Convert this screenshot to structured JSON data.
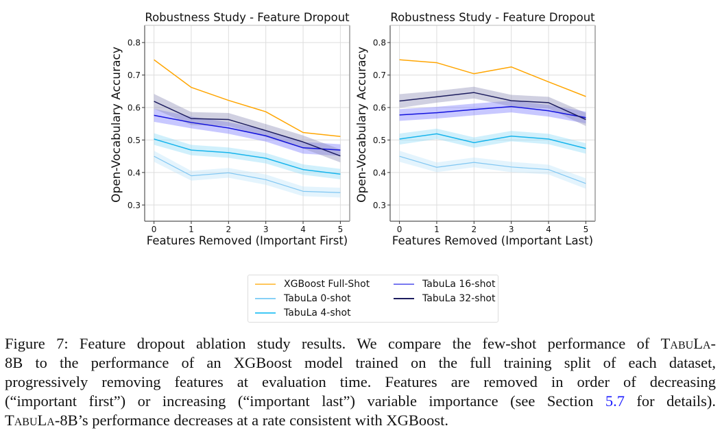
{
  "chart_data": [
    {
      "type": "line",
      "title": "Robustness Study - Feature Dropout",
      "xlabel": "Features Removed (Important First)",
      "ylabel": "Open-Vocabulary Accuracy",
      "x": [
        0,
        1,
        2,
        3,
        4,
        5
      ],
      "xticks": [
        "0",
        "1",
        "2",
        "3",
        "4",
        "5"
      ],
      "yticks": [
        "0.3",
        "0.4",
        "0.5",
        "0.6",
        "0.7",
        "0.8"
      ],
      "ytick_values": [
        0.3,
        0.4,
        0.5,
        0.6,
        0.7,
        0.8
      ],
      "xlim": [
        -0.25,
        5.25
      ],
      "ylim": [
        0.25,
        0.853
      ],
      "grid": true,
      "series": [
        {
          "name": "XGBoost Full-Shot",
          "color": "#ffa500",
          "band_color": "#ffa500",
          "values": [
            0.747,
            0.662,
            0.622,
            0.587,
            0.523,
            0.511
          ],
          "ci": [
            0.002,
            0.002,
            0.002,
            0.002,
            0.002,
            0.002
          ]
        },
        {
          "name": "TabuLa 0-shot",
          "color": "#7fc6f2",
          "band_color": "#bfe4fb",
          "values": [
            0.45,
            0.39,
            0.399,
            0.378,
            0.342,
            0.338
          ],
          "ci": [
            0.017,
            0.015,
            0.015,
            0.016,
            0.015,
            0.015
          ]
        },
        {
          "name": "TabuLa 4-shot",
          "color": "#16b4ec",
          "band_color": "#8fdcf8",
          "values": [
            0.503,
            0.469,
            0.461,
            0.444,
            0.409,
            0.395
          ],
          "ci": [
            0.018,
            0.016,
            0.016,
            0.016,
            0.016,
            0.016
          ]
        },
        {
          "name": "TabuLa 16-shot",
          "color": "#1212dd",
          "band_color": "#7b7bff",
          "values": [
            0.576,
            0.554,
            0.537,
            0.513,
            0.476,
            0.469
          ],
          "ci": [
            0.02,
            0.018,
            0.018,
            0.018,
            0.018,
            0.018
          ]
        },
        {
          "name": "TabuLa 32-shot",
          "color": "#1c1c5e",
          "band_color": "#8e8eb8",
          "values": [
            0.619,
            0.566,
            0.563,
            0.529,
            0.494,
            0.451
          ],
          "ci": [
            0.023,
            0.02,
            0.02,
            0.02,
            0.02,
            0.02
          ]
        }
      ]
    },
    {
      "type": "line",
      "title": "Robustness Study - Feature Dropout",
      "xlabel": "Features Removed (Important Last)",
      "ylabel": "Open-Vocabulary Accuracy",
      "x": [
        0,
        1,
        2,
        3,
        4,
        5
      ],
      "xticks": [
        "0",
        "1",
        "2",
        "3",
        "4",
        "5"
      ],
      "yticks": [
        "0.3",
        "0.4",
        "0.5",
        "0.6",
        "0.7",
        "0.8"
      ],
      "ytick_values": [
        0.3,
        0.4,
        0.5,
        0.6,
        0.7,
        0.8
      ],
      "xlim": [
        -0.25,
        5.25
      ],
      "ylim": [
        0.25,
        0.853
      ],
      "grid": true,
      "series": [
        {
          "name": "XGBoost Full-Shot",
          "color": "#ffa500",
          "band_color": "#ffa500",
          "values": [
            0.747,
            0.738,
            0.704,
            0.725,
            0.679,
            0.634
          ],
          "ci": [
            0.002,
            0.002,
            0.002,
            0.002,
            0.002,
            0.002
          ]
        },
        {
          "name": "TabuLa 0-shot",
          "color": "#7fc6f2",
          "band_color": "#bfe4fb",
          "values": [
            0.45,
            0.416,
            0.431,
            0.417,
            0.409,
            0.366
          ],
          "ci": [
            0.017,
            0.015,
            0.015,
            0.016,
            0.015,
            0.016
          ]
        },
        {
          "name": "TabuLa 4-shot",
          "color": "#16b4ec",
          "band_color": "#8fdcf8",
          "values": [
            0.503,
            0.519,
            0.492,
            0.512,
            0.503,
            0.474
          ],
          "ci": [
            0.017,
            0.016,
            0.016,
            0.016,
            0.016,
            0.016
          ]
        },
        {
          "name": "TabuLa 16-shot",
          "color": "#1212dd",
          "band_color": "#7b7bff",
          "values": [
            0.577,
            0.584,
            0.594,
            0.603,
            0.59,
            0.569
          ],
          "ci": [
            0.018,
            0.018,
            0.018,
            0.018,
            0.018,
            0.018
          ]
        },
        {
          "name": "TabuLa 32-shot",
          "color": "#1c1c5e",
          "band_color": "#8e8eb8",
          "values": [
            0.62,
            0.633,
            0.646,
            0.621,
            0.615,
            0.563
          ],
          "ci": [
            0.021,
            0.018,
            0.018,
            0.018,
            0.018,
            0.02
          ]
        }
      ]
    }
  ],
  "legend": {
    "placement": "bottom-center",
    "items": [
      {
        "label": "XGBoost Full-Shot",
        "color": "#ffc65a"
      },
      {
        "label": "TabuLa 0-shot",
        "color": "#86d0f6"
      },
      {
        "label": "TabuLa 4-shot",
        "color": "#40c8f5"
      },
      {
        "label": "TabuLa 16-shot",
        "color": "#7878f0"
      },
      {
        "label": "TabuLa 32-shot",
        "color": "#1c1c5e"
      }
    ]
  },
  "caption": {
    "lines": [
      [
        "Figure 7: Feature dropout ablation study results. We compare the few-shot performance of ",
        {
          "sc": "TabuLa-"
        }
      ],
      [
        "8B to the performance of an XGBoost model trained on the full training split of each dataset,"
      ],
      [
        "progressively removing features at evaluation time. Features are removed in order of decreasing"
      ],
      [
        "(“important first”) or increasing (“important last”) variable importance (see Section ",
        {
          "link": "5.7"
        },
        " for details)."
      ],
      [
        {
          "sc": "TabuLa"
        },
        "-8B’s performance decreases at a rate consistent with XGBoost."
      ]
    ],
    "link_color": "#1a1aff"
  }
}
